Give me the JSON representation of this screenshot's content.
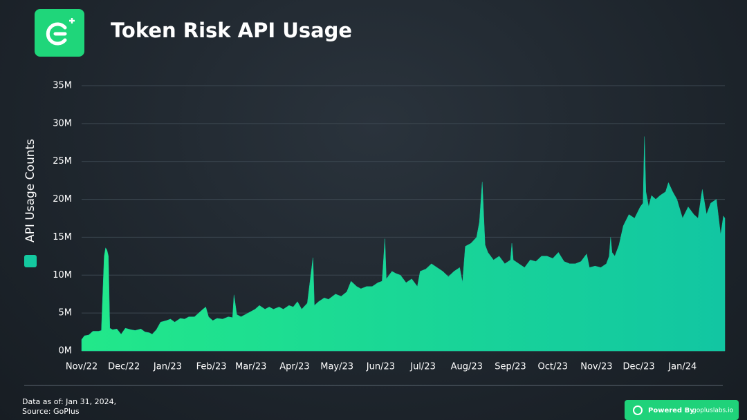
{
  "header": {
    "title": "Token Risk API Usage"
  },
  "chart_data": {
    "type": "area",
    "ylabel": "API Usage Counts",
    "ylim": [
      0,
      35
    ],
    "yticks": [
      {
        "value": 0,
        "label": "0M"
      },
      {
        "value": 5,
        "label": "5M"
      },
      {
        "value": 10,
        "label": "10M"
      },
      {
        "value": 15,
        "label": "15M"
      },
      {
        "value": 20,
        "label": "20M"
      },
      {
        "value": 25,
        "label": "25M"
      },
      {
        "value": 30,
        "label": "30M"
      },
      {
        "value": 35,
        "label": "35M"
      }
    ],
    "xlim": [
      0,
      456
    ],
    "xticks": [
      {
        "value": 0,
        "label": "Nov/22"
      },
      {
        "value": 30,
        "label": "Dec/22"
      },
      {
        "value": 61,
        "label": "Jan/23"
      },
      {
        "value": 92,
        "label": "Feb/23"
      },
      {
        "value": 120,
        "label": "Mar/23"
      },
      {
        "value": 151,
        "label": "Apr/23"
      },
      {
        "value": 181,
        "label": "May/23"
      },
      {
        "value": 212,
        "label": "Jun/23"
      },
      {
        "value": 242,
        "label": "Jul/23"
      },
      {
        "value": 273,
        "label": "Aug/23"
      },
      {
        "value": 304,
        "label": "Sep/23"
      },
      {
        "value": 334,
        "label": "Oct/23"
      },
      {
        "value": 365,
        "label": "Nov/23"
      },
      {
        "value": 395,
        "label": "Dec/23"
      },
      {
        "value": 426,
        "label": "Jan/24"
      }
    ],
    "grid": true,
    "series": [
      {
        "name": "API Usage Counts",
        "color": "#14c9a0",
        "x": [
          0,
          2,
          5,
          8,
          12,
          14,
          16,
          17,
          18,
          19,
          20,
          22,
          25,
          28,
          31,
          35,
          38,
          42,
          45,
          48,
          50,
          53,
          56,
          60,
          63,
          66,
          70,
          73,
          76,
          80,
          83,
          86,
          88,
          90,
          93,
          96,
          100,
          104,
          107,
          108,
          110,
          113,
          116,
          120,
          123,
          126,
          130,
          133,
          136,
          140,
          143,
          147,
          150,
          153,
          156,
          160,
          164,
          165,
          168,
          172,
          175,
          180,
          184,
          188,
          191,
          195,
          198,
          202,
          206,
          210,
          213,
          215,
          216,
          220,
          223,
          226,
          230,
          234,
          238,
          240,
          244,
          248,
          252,
          256,
          260,
          264,
          268,
          270,
          272,
          276,
          280,
          282,
          284,
          286,
          288,
          292,
          296,
          300,
          304,
          305,
          306,
          310,
          314,
          318,
          322,
          326,
          330,
          334,
          338,
          342,
          346,
          350,
          354,
          358,
          360,
          364,
          368,
          372,
          374,
          375,
          376,
          378,
          381,
          384,
          388,
          392,
          396,
          398,
          399,
          400,
          402,
          404,
          407,
          410,
          414,
          416,
          419,
          422,
          426,
          430,
          434,
          437,
          440,
          443,
          446,
          450,
          453,
          455,
          456
        ],
        "values": [
          1.5,
          2,
          2.1,
          2.6,
          2.6,
          2.7,
          12.5,
          13.6,
          13.3,
          12.5,
          3,
          2.8,
          2.9,
          2.2,
          3,
          2.8,
          2.7,
          2.9,
          2.5,
          2.4,
          2.2,
          2.8,
          3.8,
          4,
          4.2,
          3.8,
          4.3,
          4.2,
          4.5,
          4.5,
          5,
          5.5,
          5.8,
          4.5,
          4,
          4.3,
          4.2,
          4.5,
          4.4,
          7.4,
          4.8,
          4.5,
          4.8,
          5.2,
          5.5,
          6,
          5.5,
          5.8,
          5.5,
          5.8,
          5.5,
          6,
          5.8,
          6.5,
          5.5,
          6.3,
          12.3,
          6,
          6.5,
          7,
          6.8,
          7.5,
          7.2,
          7.8,
          9.2,
          8.5,
          8.2,
          8.5,
          8.5,
          9,
          9.2,
          14.8,
          9.5,
          10.5,
          10.2,
          10,
          9,
          9.5,
          8.5,
          10.5,
          10.8,
          11.5,
          11,
          10.5,
          9.8,
          10.5,
          11,
          9,
          13.8,
          14.2,
          15,
          17,
          22.3,
          14,
          13,
          12,
          12.5,
          11.5,
          12,
          14.2,
          12,
          11.5,
          11,
          12,
          11.8,
          12.5,
          12.5,
          12.2,
          13,
          11.8,
          11.5,
          11.5,
          11.8,
          12.8,
          11,
          11.2,
          11,
          11.5,
          12.5,
          15,
          13,
          12.5,
          14,
          16.5,
          18,
          17.5,
          19,
          19.5,
          28.3,
          21,
          19,
          20.5,
          20,
          20.5,
          21,
          22.2,
          21,
          20,
          17.5,
          19,
          18,
          17.5,
          21.3,
          18,
          19.5,
          20,
          15.3,
          17.8,
          17.5
        ]
      }
    ]
  },
  "footer": {
    "note": "Data as of: Jan 31, 2024,",
    "source": "Source: GoPlus",
    "badge": "Powered By",
    "brand": "gopluslabs.io"
  }
}
